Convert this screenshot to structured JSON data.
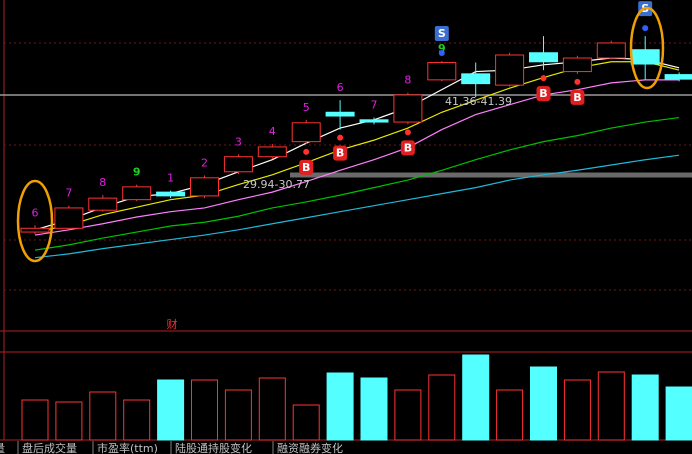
{
  "chart_data": {
    "type": "candlestick",
    "open": [
      24.1,
      24.6,
      27.0,
      28.4,
      29.4,
      28.9,
      32.1,
      34.1,
      36.1,
      40.0,
      39.0,
      38.7,
      44.3,
      45.1,
      43.6,
      47.9,
      45.4,
      47.2,
      48.3,
      45.0
    ],
    "high": [
      25.0,
      27.6,
      29.0,
      30.4,
      29.6,
      31.6,
      34.4,
      35.8,
      39.0,
      41.6,
      39.3,
      42.6,
      46.8,
      46.6,
      47.9,
      50.1,
      47.5,
      49.5,
      50.1,
      45.3
    ],
    "low": [
      23.8,
      24.4,
      26.8,
      28.2,
      28.6,
      28.6,
      31.8,
      33.8,
      35.8,
      37.7,
      38.4,
      38.4,
      44.1,
      42.0,
      43.4,
      45.6,
      45.1,
      47.0,
      44.3,
      44.1
    ],
    "close": [
      24.6,
      27.3,
      28.6,
      30.1,
      28.9,
      31.3,
      34.1,
      35.4,
      38.6,
      39.5,
      38.7,
      42.3,
      46.6,
      43.8,
      47.6,
      46.7,
      47.2,
      49.2,
      46.4,
      44.4
    ],
    "up_color": "#ff3232",
    "down_color": "#54ffff",
    "ylim": [
      11.1,
      54.9
    ],
    "series": [
      {
        "color": "#ffffff",
        "values": [
          24.4,
          25.7,
          27.4,
          28.8,
          29.2,
          30.4,
          32.1,
          33.7,
          35.9,
          37.9,
          39.0,
          40.6,
          43.0,
          45.4,
          45.6,
          46.3,
          46.7,
          47.2,
          47.0,
          45.9
        ]
      },
      {
        "color": "#e8e800",
        "values": [
          24.1,
          25.0,
          26.4,
          27.4,
          28.4,
          29.0,
          30.4,
          31.7,
          33.3,
          35.0,
          36.3,
          37.9,
          40.0,
          41.6,
          43.2,
          44.6,
          45.9,
          46.7,
          46.7,
          45.6
        ]
      },
      {
        "color": "#ff80ff",
        "values": [
          23.7,
          24.4,
          25.2,
          26.1,
          26.8,
          27.3,
          28.4,
          29.4,
          30.8,
          32.3,
          33.7,
          35.3,
          37.7,
          39.7,
          41.0,
          42.3,
          43.0,
          43.9,
          44.3,
          44.3
        ]
      },
      {
        "color": "#00c000",
        "values": [
          21.7,
          22.4,
          23.3,
          24.1,
          24.9,
          25.4,
          26.2,
          27.3,
          28.1,
          29.0,
          30.0,
          31.0,
          32.3,
          33.7,
          35.0,
          36.1,
          36.9,
          37.9,
          38.7,
          39.3
        ]
      },
      {
        "color": "#20b8d8",
        "values": [
          20.7,
          21.2,
          21.9,
          22.5,
          23.1,
          23.7,
          24.4,
          25.2,
          26.0,
          26.8,
          27.6,
          28.4,
          29.2,
          30.0,
          31.0,
          31.7,
          32.3,
          33.0,
          33.7,
          34.3
        ]
      }
    ],
    "volume": [
      40,
      38,
      48,
      40,
      60,
      60,
      50,
      62,
      35,
      67,
      62,
      50,
      65,
      85,
      50,
      73,
      60,
      68,
      65,
      53
    ],
    "volume_ylim": [
      0,
      88
    ],
    "count_labels": [
      "6",
      "7",
      "8",
      "9",
      "1",
      "2",
      "3",
      "4",
      "5",
      "6",
      "7",
      "8",
      "9",
      null,
      null,
      null,
      null,
      null,
      null,
      null
    ],
    "signals": [
      null,
      null,
      null,
      null,
      null,
      null,
      null,
      null,
      "B",
      "B",
      null,
      "B",
      "S",
      null,
      null,
      "B",
      "B",
      null,
      "S",
      null
    ],
    "range_labels": [
      "29.94-30.77",
      "41.36-41.39"
    ],
    "annotation": "财",
    "tabs": [
      "量",
      "盘后成交量",
      "市盈率(ttm)",
      "陆股通持股变化",
      "融资融券变化"
    ]
  }
}
